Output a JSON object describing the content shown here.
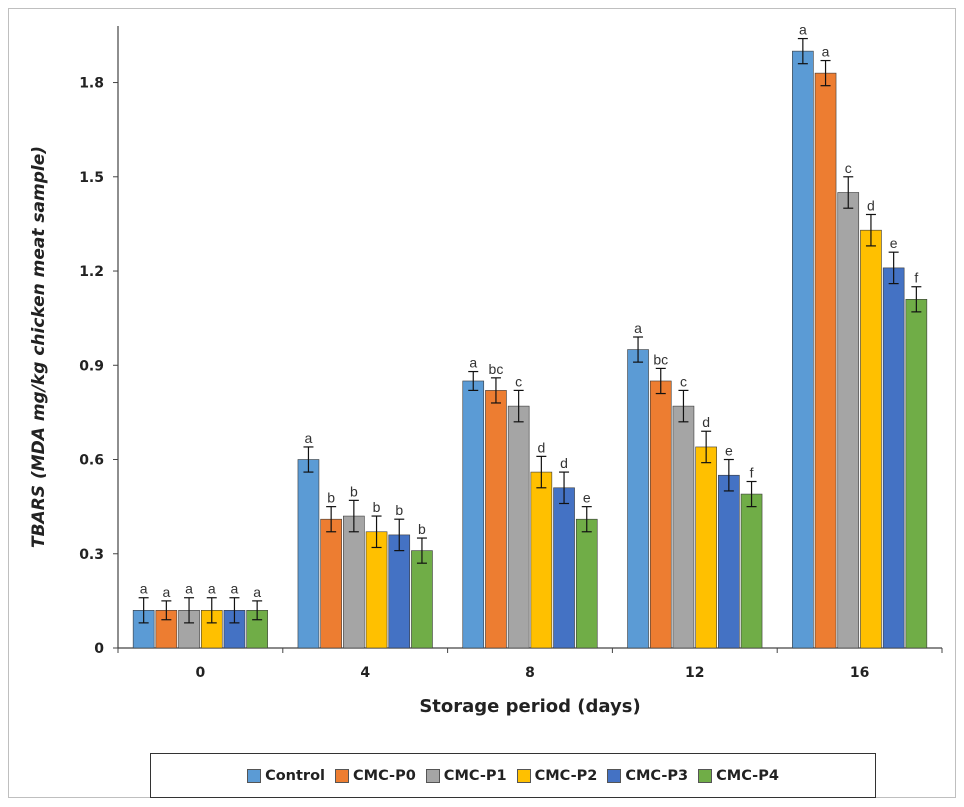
{
  "chart_data": {
    "type": "bar",
    "xlabel": "Storage period (days)",
    "ylabel": "TBARS (MDA mg/kg chicken meat sample)",
    "categories": [
      "0",
      "4",
      "8",
      "12",
      "16"
    ],
    "ylim": [
      0,
      1.98
    ],
    "yticks": [
      0,
      0.3,
      0.6,
      0.9,
      1.2,
      1.5,
      1.8
    ],
    "ytick_labels": [
      "0",
      "0.3",
      "0.6",
      "0.9",
      "1.2",
      "1.5",
      "1.8"
    ],
    "grid": false,
    "legend_position": "bottom",
    "series": [
      {
        "name": "Control",
        "color": "#5B9BD5",
        "values": [
          0.12,
          0.6,
          0.85,
          0.95,
          1.9
        ],
        "errors": [
          0.04,
          0.04,
          0.03,
          0.04,
          0.04
        ],
        "labels": [
          "a",
          "a",
          "a",
          "a",
          "a"
        ]
      },
      {
        "name": "CMC-P0",
        "color": "#ED7D31",
        "values": [
          0.12,
          0.41,
          0.82,
          0.85,
          1.83
        ],
        "errors": [
          0.03,
          0.04,
          0.04,
          0.04,
          0.04
        ],
        "labels": [
          "a",
          "b",
          "bc",
          "bc",
          "a"
        ]
      },
      {
        "name": "CMC-P1",
        "color": "#A5A5A5",
        "values": [
          0.12,
          0.42,
          0.77,
          0.77,
          1.45
        ],
        "errors": [
          0.04,
          0.05,
          0.05,
          0.05,
          0.05
        ],
        "labels": [
          "a",
          "b",
          "c",
          "c",
          "c"
        ]
      },
      {
        "name": "CMC-P2",
        "color": "#FFC000",
        "values": [
          0.12,
          0.37,
          0.56,
          0.64,
          1.33
        ],
        "errors": [
          0.04,
          0.05,
          0.05,
          0.05,
          0.05
        ],
        "labels": [
          "a",
          "b",
          "d",
          "d",
          "d"
        ]
      },
      {
        "name": "CMC-P3",
        "color": "#4472C4",
        "values": [
          0.12,
          0.36,
          0.51,
          0.55,
          1.21
        ],
        "errors": [
          0.04,
          0.05,
          0.05,
          0.05,
          0.05
        ],
        "labels": [
          "a",
          "b",
          "d",
          "e",
          "e"
        ]
      },
      {
        "name": "CMC-P4",
        "color": "#70AD47",
        "values": [
          0.12,
          0.31,
          0.41,
          0.49,
          1.11
        ],
        "errors": [
          0.03,
          0.04,
          0.04,
          0.04,
          0.04
        ],
        "labels": [
          "a",
          "b",
          "e",
          "f",
          "f"
        ]
      }
    ]
  }
}
